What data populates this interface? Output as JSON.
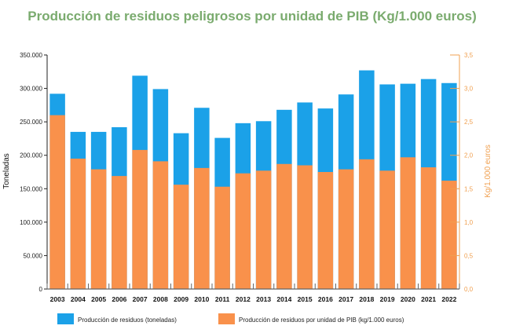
{
  "chart_data": {
    "type": "bar",
    "title": "Producción de residuos peligrosos por unidad de PIB (Kg/1.000 euros)",
    "categories": [
      "2003",
      "2004",
      "2005",
      "2006",
      "2007",
      "2008",
      "2009",
      "2010",
      "2011",
      "2012",
      "2013",
      "2014",
      "2015",
      "2016",
      "2017",
      "2018",
      "2019",
      "2020",
      "2021",
      "2022"
    ],
    "series": [
      {
        "name": "Producción de residuos (toneladas)",
        "axis": "left",
        "color": "#1ba1e8",
        "values": [
          292000,
          235000,
          235000,
          242000,
          319000,
          299000,
          233000,
          271000,
          226000,
          248000,
          251000,
          268000,
          279000,
          270000,
          291000,
          327000,
          306000,
          307000,
          314000,
          308000
        ]
      },
      {
        "name": "Producción de residuos por unidad de PIB (kg/1.000 euros)",
        "axis": "right",
        "color": "#f9914b",
        "values": [
          2.6,
          1.95,
          1.79,
          1.69,
          2.08,
          1.91,
          1.56,
          1.81,
          1.53,
          1.73,
          1.77,
          1.87,
          1.85,
          1.75,
          1.79,
          1.94,
          1.77,
          1.97,
          1.82,
          1.62
        ]
      }
    ],
    "ylabel": "Toneladas",
    "ylim": [
      0,
      350000
    ],
    "yticks": [
      0,
      50000,
      100000,
      150000,
      200000,
      250000,
      300000,
      350000
    ],
    "ytick_labels": [
      "0",
      "50.000",
      "100.000",
      "150.000",
      "200.000",
      "250.000",
      "300.000",
      "350.000"
    ],
    "y2label": "Kg/1.000 euros",
    "y2lim": [
      0,
      3.5
    ],
    "y2ticks": [
      0,
      0.5,
      1,
      1.5,
      2,
      2.5,
      3,
      3.5
    ],
    "y2tick_labels": [
      "0,0",
      "0,5",
      "1,0",
      "1,5",
      "2,0",
      "2,5",
      "3,0",
      "3,5"
    ],
    "legend_position": "bottom",
    "colors": {
      "title": "#7aab6e",
      "right_axis": "#f0a050",
      "left_axis": "#222222",
      "baseline": "#666666"
    }
  }
}
